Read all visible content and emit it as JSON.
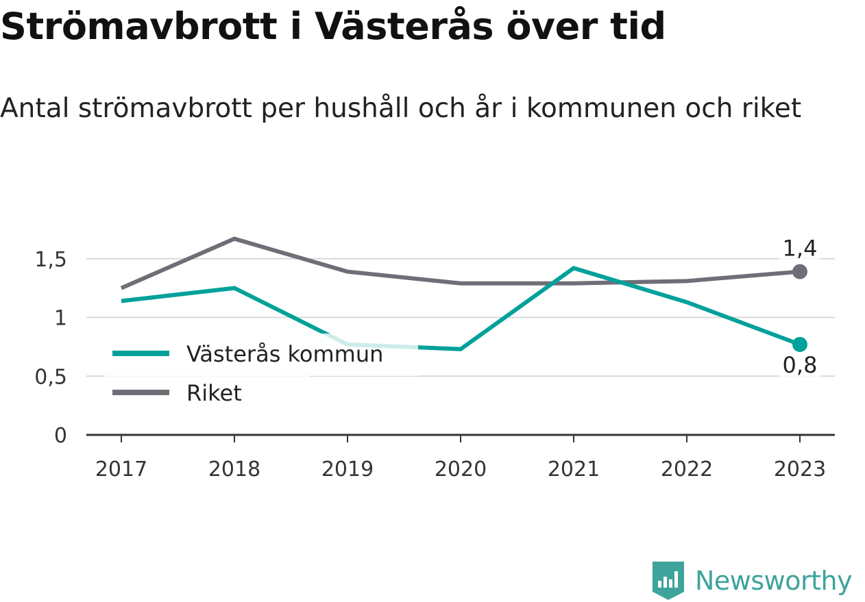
{
  "title": "Strömavbrott i Västerås över tid",
  "subtitle": "Antal strömavbrott per hushåll och år i kommunen och riket",
  "logo": {
    "text": "Newsworthy",
    "icon": "bar-chart-badge-icon",
    "color": "#3da39b"
  },
  "chart_data": {
    "type": "line",
    "title": "Strömavbrott i Västerås över tid",
    "subtitle": "Antal strömavbrott per hushåll och år i kommunen och riket",
    "x": [
      "2017",
      "2018",
      "2019",
      "2020",
      "2021",
      "2022",
      "2023"
    ],
    "ylim": [
      0,
      1.5
    ],
    "yticks": [
      {
        "value": 0,
        "label": "0"
      },
      {
        "value": 0.5,
        "label": "0,5"
      },
      {
        "value": 1,
        "label": "1"
      },
      {
        "value": 1.5,
        "label": "1,5"
      }
    ],
    "grid": true,
    "legend": "bottom-left",
    "series": [
      {
        "name": "Västerås kommun",
        "color": "#00a19a",
        "values": [
          1.14,
          1.25,
          0.77,
          0.73,
          1.42,
          1.13,
          0.77
        ],
        "end_label": "0,8"
      },
      {
        "name": "Riket",
        "color": "#6f6e77",
        "values": [
          1.25,
          1.67,
          1.39,
          1.29,
          1.29,
          1.31,
          1.39
        ],
        "end_label": "1,4"
      }
    ]
  }
}
